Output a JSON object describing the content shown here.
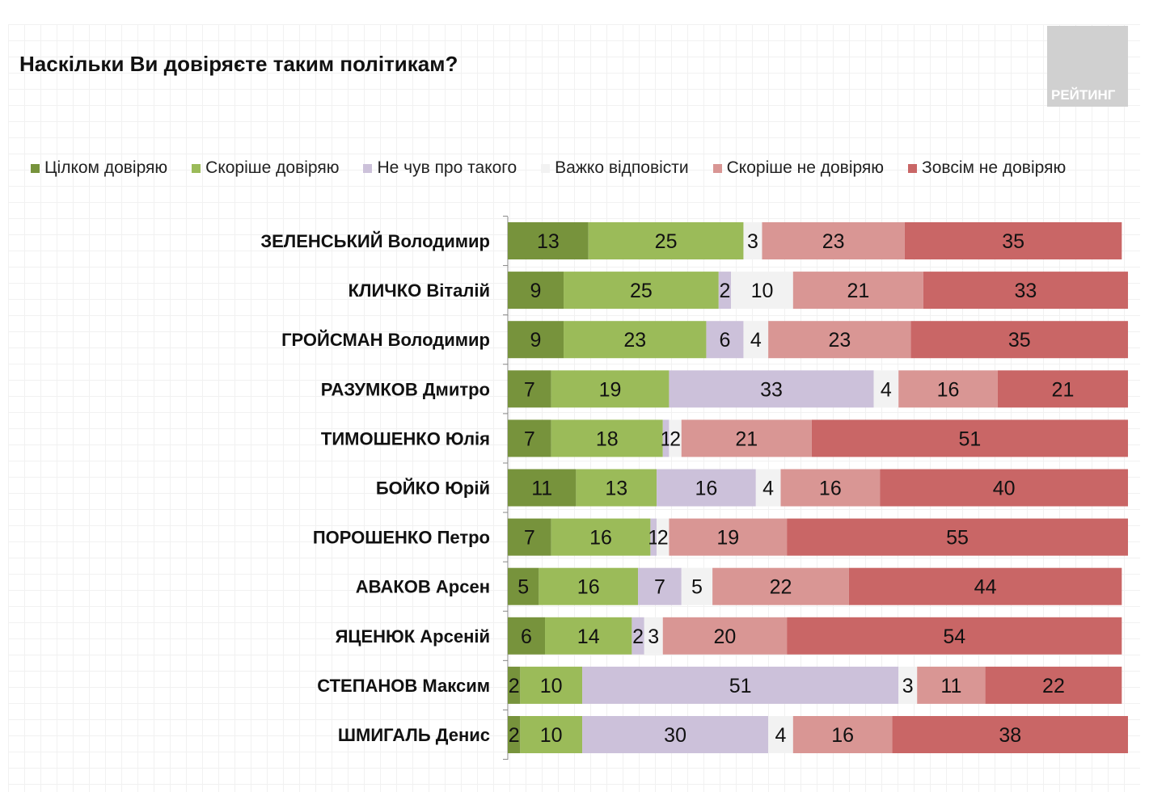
{
  "chart_data": {
    "type": "bar",
    "orientation": "horizontal-stacked-100",
    "title": "Наскільки Ви довіряєте таким політикам?",
    "watermark": "РЕЙТИНГ",
    "legend_position": "top",
    "series_names": [
      "Цілком довіряю",
      "Скоріше довіряю",
      "Не чув про такого",
      "Важко відповісти",
      "Скоріше не довіряю",
      "Зовсім не довіряю"
    ],
    "colors": [
      "#77933c",
      "#9bbb59",
      "#ccc1da",
      "#f2f2f2",
      "#d99694",
      "#c96666"
    ],
    "categories": [
      "ЗЕЛЕНСЬКИЙ Володимир",
      "КЛИЧКО Віталій",
      "ГРОЙСМАН Володимир",
      "РАЗУМКОВ Дмитро",
      "ТИМОШЕНКО Юлія",
      "БОЙКО Юрій",
      "ПОРОШЕНКО Петро",
      "АВАКОВ Арсен",
      "ЯЦЕНЮК Арсеній",
      "СТЕПАНОВ Максим",
      "ШМИГАЛЬ Денис"
    ],
    "values": [
      [
        13,
        25,
        0,
        3,
        23,
        35
      ],
      [
        9,
        25,
        2,
        10,
        21,
        33
      ],
      [
        9,
        23,
        6,
        4,
        23,
        35
      ],
      [
        7,
        19,
        33,
        4,
        16,
        21
      ],
      [
        7,
        18,
        1,
        2,
        21,
        51
      ],
      [
        11,
        13,
        16,
        4,
        16,
        40
      ],
      [
        7,
        16,
        1,
        2,
        19,
        55
      ],
      [
        5,
        16,
        7,
        5,
        22,
        44
      ],
      [
        6,
        14,
        2,
        3,
        20,
        54
      ],
      [
        2,
        10,
        51,
        3,
        11,
        22
      ],
      [
        2,
        10,
        30,
        4,
        16,
        38
      ]
    ],
    "xlim": [
      0,
      100
    ]
  }
}
